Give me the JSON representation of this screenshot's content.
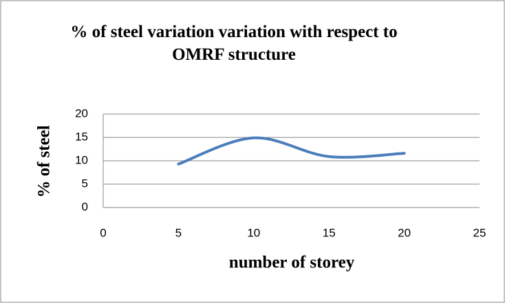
{
  "chart_data": {
    "type": "line",
    "title": "% of steel variation variation with respect to OMRF structure",
    "xlabel": "number of storey",
    "ylabel": "% of steel",
    "x": [
      5,
      10,
      15,
      20
    ],
    "series": [
      {
        "name": "% of steel",
        "color": "#4a7ebb",
        "values": [
          9.3,
          14.9,
          10.9,
          11.6
        ]
      }
    ],
    "xlim": [
      0,
      25
    ],
    "xticks": [
      0,
      5,
      10,
      15,
      20,
      25
    ],
    "ylim": [
      0,
      20
    ],
    "yticks": [
      0,
      5,
      10,
      15,
      20
    ],
    "grid": true,
    "smooth": true
  }
}
